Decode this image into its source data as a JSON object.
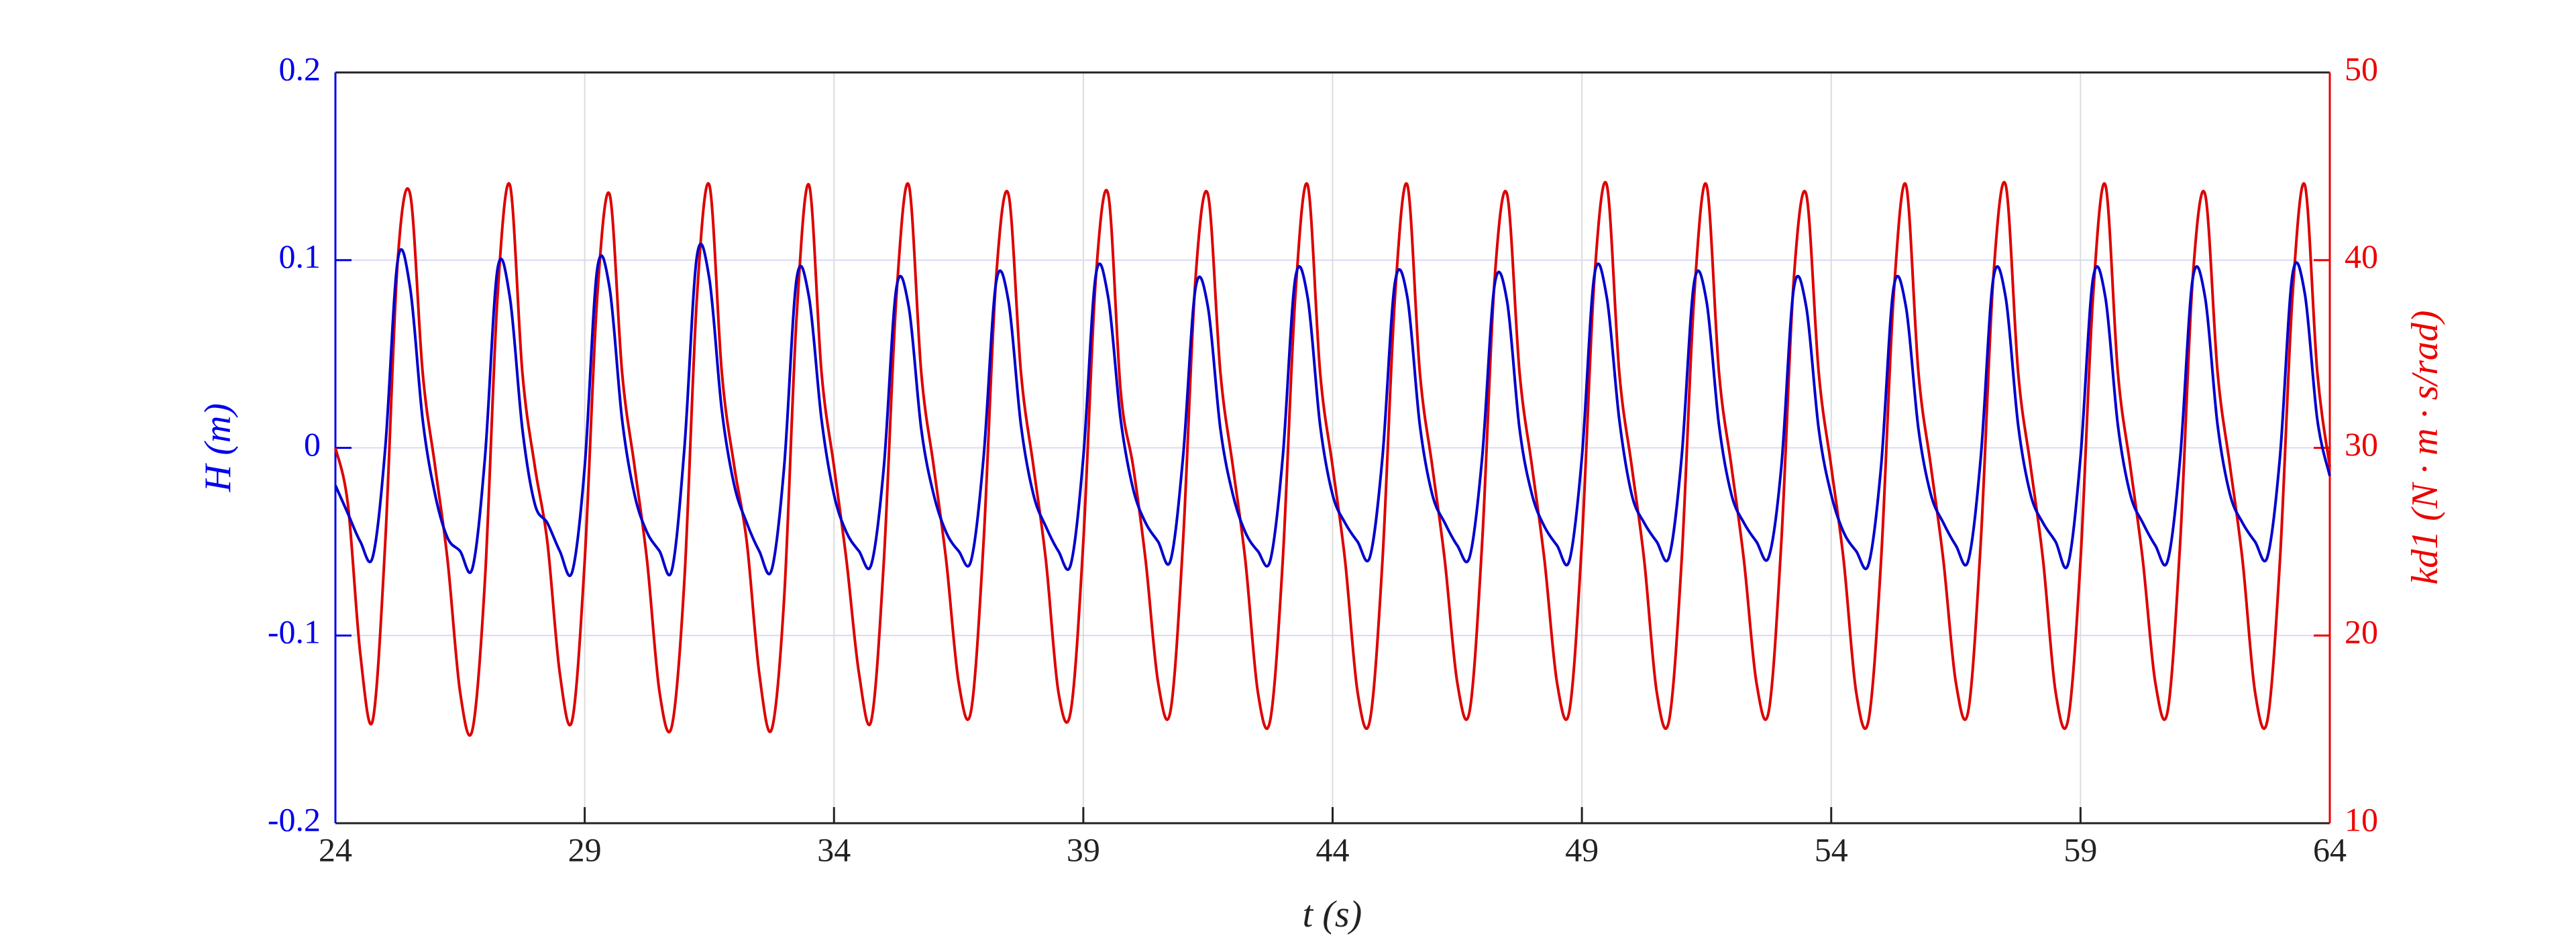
{
  "chart_data": {
    "type": "line",
    "xlabel": "t (s)",
    "ylabel": "H (m)",
    "y2label": "kd1 (N · m · s/rad)",
    "xlim": [
      24,
      64
    ],
    "xticks": [
      24,
      29,
      34,
      39,
      44,
      49,
      54,
      59,
      64
    ],
    "ylim": [
      -0.2,
      0.2
    ],
    "yticks": [
      -0.2,
      -0.1,
      0,
      0.1,
      0.2
    ],
    "y2lim": [
      10,
      50
    ],
    "y2ticks": [
      10,
      20,
      30,
      40,
      50
    ],
    "grid": true,
    "x": [
      24,
      24.25,
      24.5,
      24.75,
      25,
      25.25,
      25.5,
      25.75,
      26,
      26.25,
      26.5,
      26.75,
      27,
      27.25,
      27.5,
      27.75,
      28,
      28.25,
      28.5,
      28.75,
      29,
      29.25,
      29.5,
      29.75,
      30,
      30.25,
      30.5,
      30.75,
      31,
      31.25,
      31.5,
      31.75,
      32,
      32.25,
      32.5,
      32.75,
      33,
      33.25,
      33.5,
      33.75,
      34,
      34.25,
      34.5,
      34.75,
      35,
      35.25,
      35.5,
      35.75,
      36,
      36.25,
      36.5,
      36.75,
      37,
      37.25,
      37.5,
      37.75,
      38,
      38.25,
      38.5,
      38.75,
      39,
      39.25,
      39.5,
      39.75,
      40,
      40.25,
      40.5,
      40.75,
      41,
      41.25,
      41.5,
      41.75,
      42,
      42.25,
      42.5,
      42.75,
      43,
      43.25,
      43.5,
      43.75,
      44,
      44.25,
      44.5,
      44.75,
      45,
      45.25,
      45.5,
      45.75,
      46,
      46.25,
      46.5,
      46.75,
      47,
      47.25,
      47.5,
      47.75,
      48,
      48.25,
      48.5,
      48.75,
      49,
      49.25,
      49.5,
      49.75,
      50,
      50.25,
      50.5,
      50.75,
      51,
      51.25,
      51.5,
      51.75,
      52,
      52.25,
      52.5,
      52.75,
      53,
      53.25,
      53.5,
      53.75,
      54,
      54.25,
      54.5,
      54.75,
      55,
      55.25,
      55.5,
      55.75,
      56,
      56.25,
      56.5,
      56.75,
      57,
      57.25,
      57.5,
      57.75,
      58,
      58.25,
      58.5,
      58.75,
      59,
      59.25,
      59.5,
      59.75,
      60,
      60.25,
      60.5,
      60.75,
      61,
      61.25,
      61.5,
      61.75,
      62,
      62.25,
      62.5,
      62.75,
      63,
      63.25,
      63.5,
      63.75,
      64
    ],
    "series": [
      {
        "name": "H",
        "color": "#0000cc",
        "values": [
          -0.02,
          -0.035,
          -0.05,
          -0.058,
          0.0,
          0.1,
          0.085,
          0.015,
          -0.025,
          -0.048,
          -0.055,
          -0.064,
          -0.005,
          0.095,
          0.08,
          0.01,
          -0.03,
          -0.04,
          -0.055,
          -0.066,
          -0.01,
          0.095,
          0.085,
          0.015,
          -0.025,
          -0.045,
          -0.055,
          -0.065,
          0.0,
          0.102,
          0.09,
          0.02,
          -0.02,
          -0.04,
          -0.055,
          -0.065,
          -0.01,
          0.09,
          0.08,
          0.015,
          -0.025,
          -0.045,
          -0.055,
          -0.062,
          -0.01,
          0.085,
          0.075,
          0.01,
          -0.025,
          -0.045,
          -0.055,
          -0.06,
          -0.005,
          0.088,
          0.078,
          0.012,
          -0.025,
          -0.042,
          -0.055,
          -0.062,
          -0.005,
          0.092,
          0.08,
          0.015,
          -0.022,
          -0.04,
          -0.05,
          -0.06,
          -0.005,
          0.085,
          0.075,
          0.01,
          -0.025,
          -0.045,
          -0.055,
          -0.06,
          -0.005,
          0.09,
          0.08,
          0.012,
          -0.025,
          -0.04,
          -0.05,
          -0.058,
          -0.005,
          0.088,
          0.08,
          0.012,
          -0.025,
          -0.04,
          -0.052,
          -0.058,
          -0.005,
          0.087,
          0.078,
          0.01,
          -0.025,
          -0.042,
          -0.052,
          -0.06,
          -0.005,
          0.092,
          0.08,
          0.015,
          -0.025,
          -0.04,
          -0.05,
          -0.058,
          -0.005,
          0.088,
          0.078,
          0.012,
          -0.025,
          -0.04,
          -0.05,
          -0.058,
          -0.01,
          0.085,
          0.075,
          0.01,
          -0.025,
          -0.045,
          -0.055,
          -0.062,
          -0.01,
          0.085,
          0.075,
          0.01,
          -0.025,
          -0.04,
          -0.052,
          -0.06,
          -0.005,
          0.09,
          0.08,
          0.012,
          -0.025,
          -0.04,
          -0.05,
          -0.062,
          -0.005,
          0.09,
          0.08,
          0.012,
          -0.025,
          -0.04,
          -0.052,
          -0.06,
          -0.005,
          0.09,
          0.08,
          0.012,
          -0.025,
          -0.04,
          -0.05,
          -0.058,
          -0.005,
          0.092,
          0.082,
          0.015,
          -0.015
        ]
      },
      {
        "name": "kd1",
        "color": "#dd0000",
        "axis": "y2",
        "values": [
          30,
          27,
          19,
          15.5,
          25,
          40,
          43.5,
          34,
          29,
          24,
          17,
          15,
          23,
          38,
          44,
          34,
          29,
          25,
          18,
          15.5,
          24,
          38,
          43.5,
          34,
          29,
          24,
          17,
          15.2,
          23,
          38,
          44,
          34,
          29,
          25,
          18,
          15,
          22,
          37,
          44,
          34,
          29,
          24,
          18,
          15.5,
          24,
          38,
          44,
          34,
          29,
          24,
          17.5,
          16,
          25,
          39,
          43.5,
          34,
          29,
          24,
          17,
          16,
          25,
          39,
          43.5,
          33,
          29,
          24,
          17.5,
          16,
          25,
          39,
          43.5,
          34,
          29,
          24,
          17,
          15.5,
          24,
          38,
          44,
          34,
          29,
          24,
          17,
          15.5,
          24,
          38,
          44,
          34,
          29,
          24,
          17.5,
          16,
          25,
          39,
          43.5,
          34,
          29,
          24,
          17.5,
          16,
          25,
          39,
          44,
          34,
          29,
          24,
          17,
          15.5,
          24,
          38,
          44,
          34,
          29,
          24,
          17.5,
          16,
          25,
          39,
          43.5,
          34,
          29,
          24,
          17,
          15.5,
          24,
          38,
          44,
          34,
          29,
          24,
          17.5,
          16,
          25,
          39,
          44,
          34,
          29,
          24,
          17,
          15.5,
          24,
          38,
          44,
          34,
          29,
          24,
          17.5,
          16,
          25,
          39,
          43.5,
          34,
          29,
          24,
          17,
          15.5,
          24,
          38,
          44,
          34,
          29
        ]
      }
    ]
  }
}
